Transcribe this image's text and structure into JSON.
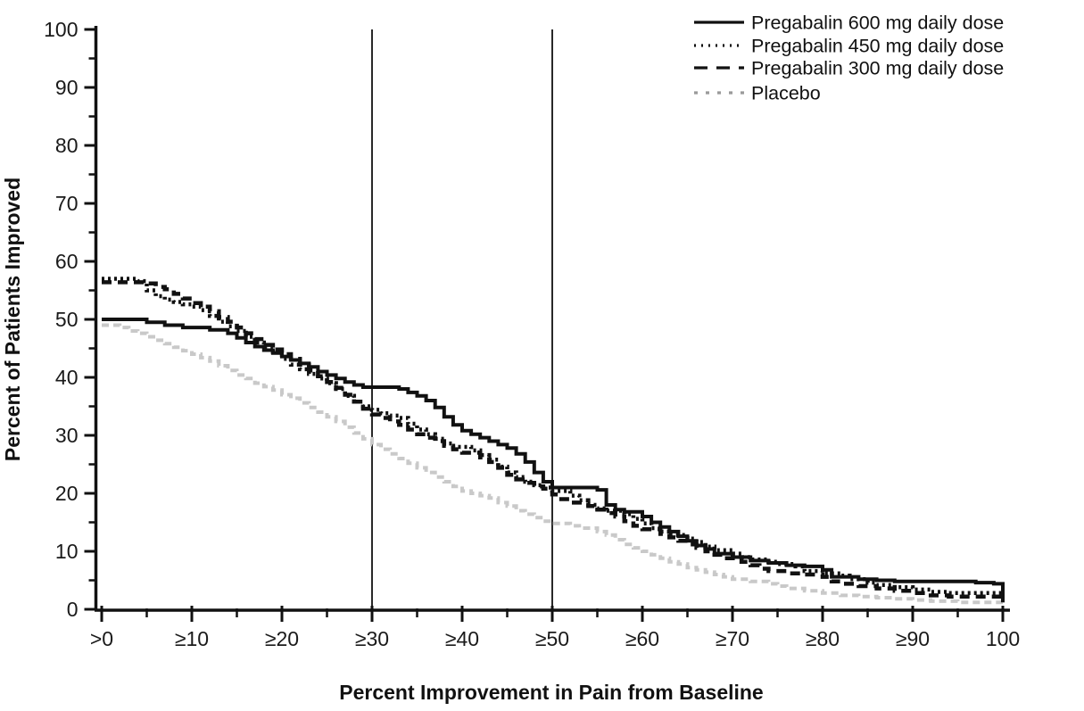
{
  "figure": {
    "x_axis_title": "Percent Improvement in Pain from Baseline",
    "y_axis_title": "Percent of Patients Improved"
  },
  "chart_data": {
    "type": "line",
    "subtype": "step-after",
    "title": "",
    "xlabel": "Percent Improvement in Pain from Baseline",
    "ylabel": "Percent of Patients Improved",
    "xlim": [
      0,
      100
    ],
    "ylim": [
      0,
      100
    ],
    "grid": false,
    "legend_position": "top-right",
    "x_tick_values": [
      0,
      10,
      20,
      30,
      40,
      50,
      60,
      70,
      80,
      90,
      100
    ],
    "x_tick_labels": [
      ">0",
      "≥10",
      "≥20",
      "≥30",
      "≥40",
      "≥50",
      "≥60",
      "≥70",
      "≥80",
      "≥90",
      "100"
    ],
    "y_tick_values": [
      0,
      10,
      20,
      30,
      40,
      50,
      60,
      70,
      80,
      90,
      100
    ],
    "y_tick_labels": [
      "0",
      "10",
      "20",
      "30",
      "40",
      "50",
      "60",
      "70",
      "80",
      "90",
      "100"
    ],
    "minor_tick_step": 5,
    "reference_lines_x": [
      30,
      50
    ],
    "colors": {
      "axis": "#111111",
      "drug_line": "#111111",
      "placebo_line": "#c9c9c9",
      "legend_placebo_sample": "#9a9a9a",
      "background": "#ffffff"
    },
    "series": [
      {
        "name": "Pregabalin 600 mg daily dose",
        "style": "solid",
        "color": "#111111",
        "points": [
          [
            0,
            50
          ],
          [
            4,
            50
          ],
          [
            5,
            49.5
          ],
          [
            7,
            49
          ],
          [
            9,
            48.6
          ],
          [
            12,
            48.2
          ],
          [
            14,
            47.6
          ],
          [
            15,
            46.8
          ],
          [
            16,
            46
          ],
          [
            17,
            45.3
          ],
          [
            18,
            44.7
          ],
          [
            19,
            44.2
          ],
          [
            20,
            43.6
          ],
          [
            21,
            43
          ],
          [
            22,
            42.4
          ],
          [
            23,
            41.8
          ],
          [
            24,
            41
          ],
          [
            25,
            40.4
          ],
          [
            26,
            39.8
          ],
          [
            27,
            39.2
          ],
          [
            28,
            38.7
          ],
          [
            29,
            38.3
          ],
          [
            33,
            38
          ],
          [
            34,
            37.4
          ],
          [
            35,
            36.8
          ],
          [
            36,
            36
          ],
          [
            37,
            34.8
          ],
          [
            38,
            33.2
          ],
          [
            39,
            31.8
          ],
          [
            40,
            30.8
          ],
          [
            41,
            30.2
          ],
          [
            42,
            29.6
          ],
          [
            43,
            29
          ],
          [
            44,
            28.4
          ],
          [
            45,
            27.8
          ],
          [
            46,
            26.8
          ],
          [
            47,
            25.4
          ],
          [
            48,
            23.6
          ],
          [
            49,
            22
          ],
          [
            50,
            21
          ],
          [
            55,
            20.6
          ],
          [
            56,
            18
          ],
          [
            57,
            17.2
          ],
          [
            58,
            16.8
          ],
          [
            60,
            16
          ],
          [
            61,
            15
          ],
          [
            62,
            14.2
          ],
          [
            63,
            13.4
          ],
          [
            64,
            12.6
          ],
          [
            65,
            11.8
          ],
          [
            66,
            11
          ],
          [
            67,
            10.4
          ],
          [
            68,
            9.6
          ],
          [
            70,
            9
          ],
          [
            72,
            8.4
          ],
          [
            74,
            8
          ],
          [
            76,
            7.6
          ],
          [
            78,
            7.4
          ],
          [
            80,
            6.8
          ],
          [
            81,
            5.6
          ],
          [
            84,
            5.2
          ],
          [
            86,
            5
          ],
          [
            88,
            4.8
          ],
          [
            97,
            4.6
          ],
          [
            99,
            4.4
          ],
          [
            100,
            1.2
          ]
        ]
      },
      {
        "name": "Pregabalin 450 mg daily dose",
        "style": "dotted",
        "color": "#111111",
        "points": [
          [
            0,
            57
          ],
          [
            4,
            56.6
          ],
          [
            5,
            55
          ],
          [
            6,
            54
          ],
          [
            7,
            53.4
          ],
          [
            8,
            53
          ],
          [
            9,
            52.6
          ],
          [
            10,
            52.2
          ],
          [
            11,
            51.6
          ],
          [
            12,
            50.6
          ],
          [
            13,
            49.6
          ],
          [
            14,
            48.8
          ],
          [
            15,
            48
          ],
          [
            16,
            47
          ],
          [
            17,
            46
          ],
          [
            18,
            45.2
          ],
          [
            19,
            44.4
          ],
          [
            20,
            43.2
          ],
          [
            21,
            42.2
          ],
          [
            22,
            41.4
          ],
          [
            23,
            40.6
          ],
          [
            24,
            39.8
          ],
          [
            25,
            39
          ],
          [
            26,
            38
          ],
          [
            27,
            36.8
          ],
          [
            28,
            35.8
          ],
          [
            29,
            35
          ],
          [
            30,
            34.4
          ],
          [
            31,
            33.8
          ],
          [
            32,
            33.4
          ],
          [
            33,
            33
          ],
          [
            34,
            32
          ],
          [
            35,
            31
          ],
          [
            36,
            30.2
          ],
          [
            37,
            29.4
          ],
          [
            38,
            28.6
          ],
          [
            39,
            28
          ],
          [
            41,
            27.4
          ],
          [
            42,
            26.6
          ],
          [
            43,
            25.8
          ],
          [
            44,
            24.6
          ],
          [
            45,
            23.6
          ],
          [
            46,
            22.8
          ],
          [
            47,
            22
          ],
          [
            48,
            21.4
          ],
          [
            49,
            21
          ],
          [
            50,
            20.4
          ],
          [
            52,
            19.6
          ],
          [
            53,
            18.8
          ],
          [
            54,
            18
          ],
          [
            55,
            17.4
          ],
          [
            56,
            17
          ],
          [
            58,
            16.4
          ],
          [
            59,
            15.6
          ],
          [
            60,
            14.8
          ],
          [
            61,
            14
          ],
          [
            62,
            13.4
          ],
          [
            63,
            12.8
          ],
          [
            65,
            12.2
          ],
          [
            66,
            11.6
          ],
          [
            67,
            10.8
          ],
          [
            68,
            10.2
          ],
          [
            70,
            9.6
          ],
          [
            71,
            9
          ],
          [
            72,
            8.6
          ],
          [
            74,
            8.2
          ],
          [
            75,
            7.8
          ],
          [
            77,
            7.4
          ],
          [
            78,
            6.6
          ],
          [
            80,
            6.2
          ],
          [
            82,
            5.8
          ],
          [
            83,
            5.2
          ],
          [
            85,
            4.6
          ],
          [
            86,
            4.2
          ],
          [
            88,
            3.8
          ],
          [
            90,
            3.4
          ],
          [
            92,
            3
          ],
          [
            94,
            2.8
          ],
          [
            100,
            2.6
          ]
        ]
      },
      {
        "name": "Pregabalin 300 mg daily dose",
        "style": "dashed",
        "color": "#111111",
        "points": [
          [
            0,
            56.4
          ],
          [
            5,
            56.2
          ],
          [
            6,
            55.6
          ],
          [
            7,
            55.2
          ],
          [
            8,
            54.4
          ],
          [
            9,
            53.6
          ],
          [
            10,
            52.8
          ],
          [
            11,
            52.2
          ],
          [
            12,
            51.4
          ],
          [
            13,
            50.4
          ],
          [
            14,
            49.6
          ],
          [
            15,
            48.6
          ],
          [
            16,
            47.6
          ],
          [
            17,
            46.6
          ],
          [
            18,
            45.6
          ],
          [
            19,
            44.8
          ],
          [
            20,
            44
          ],
          [
            21,
            43.2
          ],
          [
            22,
            42.2
          ],
          [
            23,
            41.2
          ],
          [
            24,
            40.2
          ],
          [
            25,
            39.2
          ],
          [
            26,
            38.2
          ],
          [
            27,
            37
          ],
          [
            28,
            35.8
          ],
          [
            29,
            34.6
          ],
          [
            30,
            33.6
          ],
          [
            31,
            33
          ],
          [
            32,
            32.4
          ],
          [
            33,
            31.8
          ],
          [
            34,
            31
          ],
          [
            35,
            30.2
          ],
          [
            36,
            29.6
          ],
          [
            37,
            29
          ],
          [
            38,
            28.2
          ],
          [
            39,
            27.6
          ],
          [
            40,
            27
          ],
          [
            42,
            26.2
          ],
          [
            43,
            25.4
          ],
          [
            44,
            24.4
          ],
          [
            45,
            23.2
          ],
          [
            46,
            22.4
          ],
          [
            47,
            21.8
          ],
          [
            48,
            21.2
          ],
          [
            49,
            20.8
          ],
          [
            50,
            19.8
          ],
          [
            51,
            19
          ],
          [
            52,
            18.4
          ],
          [
            54,
            17.8
          ],
          [
            55,
            17.2
          ],
          [
            56,
            16.6
          ],
          [
            57,
            16
          ],
          [
            58,
            15.2
          ],
          [
            59,
            14.4
          ],
          [
            60,
            13.8
          ],
          [
            62,
            13
          ],
          [
            63,
            12.4
          ],
          [
            64,
            11.8
          ],
          [
            65,
            11.2
          ],
          [
            66,
            10.6
          ],
          [
            67,
            10
          ],
          [
            68,
            9.4
          ],
          [
            69,
            8.8
          ],
          [
            71,
            8.2
          ],
          [
            72,
            7.6
          ],
          [
            73,
            7
          ],
          [
            74,
            6.6
          ],
          [
            76,
            6.2
          ],
          [
            78,
            6
          ],
          [
            80,
            5.6
          ],
          [
            81,
            4.8
          ],
          [
            82,
            4.4
          ],
          [
            84,
            4
          ],
          [
            86,
            3.6
          ],
          [
            88,
            3.2
          ],
          [
            90,
            2.8
          ],
          [
            92,
            2.4
          ],
          [
            94,
            2.2
          ],
          [
            100,
            2
          ]
        ]
      },
      {
        "name": "Placebo",
        "style": "short-dash",
        "color": "#c9c9c9",
        "points": [
          [
            0,
            49
          ],
          [
            2,
            48.6
          ],
          [
            3,
            48
          ],
          [
            4,
            47.6
          ],
          [
            5,
            47
          ],
          [
            6,
            46.4
          ],
          [
            7,
            45.8
          ],
          [
            8,
            45.2
          ],
          [
            9,
            44.6
          ],
          [
            10,
            44
          ],
          [
            11,
            43.4
          ],
          [
            12,
            42.8
          ],
          [
            13,
            42
          ],
          [
            14,
            41.2
          ],
          [
            15,
            40.4
          ],
          [
            16,
            39.8
          ],
          [
            17,
            39
          ],
          [
            18,
            38.4
          ],
          [
            19,
            37.8
          ],
          [
            20,
            37
          ],
          [
            21,
            36.4
          ],
          [
            22,
            35.6
          ],
          [
            23,
            34.8
          ],
          [
            24,
            34
          ],
          [
            25,
            33.2
          ],
          [
            26,
            32.4
          ],
          [
            27,
            31.4
          ],
          [
            28,
            30.4
          ],
          [
            29,
            29.4
          ],
          [
            30,
            28.4
          ],
          [
            31,
            27.6
          ],
          [
            32,
            26.8
          ],
          [
            33,
            26
          ],
          [
            34,
            25.2
          ],
          [
            35,
            24.4
          ],
          [
            36,
            23.6
          ],
          [
            37,
            22.8
          ],
          [
            38,
            22
          ],
          [
            39,
            21.2
          ],
          [
            40,
            20.4
          ],
          [
            41,
            20
          ],
          [
            42,
            19.6
          ],
          [
            43,
            19.2
          ],
          [
            44,
            18.4
          ],
          [
            45,
            17.8
          ],
          [
            46,
            17
          ],
          [
            47,
            16.4
          ],
          [
            48,
            15.8
          ],
          [
            49,
            15.2
          ],
          [
            50,
            14.8
          ],
          [
            52,
            14.4
          ],
          [
            53,
            14
          ],
          [
            55,
            13.4
          ],
          [
            56,
            12.8
          ],
          [
            57,
            12
          ],
          [
            58,
            11.2
          ],
          [
            59,
            10.6
          ],
          [
            60,
            10
          ],
          [
            61,
            9.4
          ],
          [
            62,
            8.8
          ],
          [
            63,
            8.2
          ],
          [
            64,
            7.8
          ],
          [
            65,
            7.2
          ],
          [
            66,
            6.8
          ],
          [
            67,
            6.4
          ],
          [
            68,
            6
          ],
          [
            69,
            5.6
          ],
          [
            70,
            5.2
          ],
          [
            72,
            4.8
          ],
          [
            74,
            4.4
          ],
          [
            75,
            4
          ],
          [
            76,
            3.6
          ],
          [
            78,
            3.2
          ],
          [
            80,
            2.8
          ],
          [
            82,
            2.4
          ],
          [
            84,
            2.2
          ],
          [
            86,
            2
          ],
          [
            88,
            1.8
          ],
          [
            90,
            1.6
          ],
          [
            92,
            1.4
          ],
          [
            95,
            1.2
          ],
          [
            100,
            1
          ]
        ]
      }
    ]
  }
}
